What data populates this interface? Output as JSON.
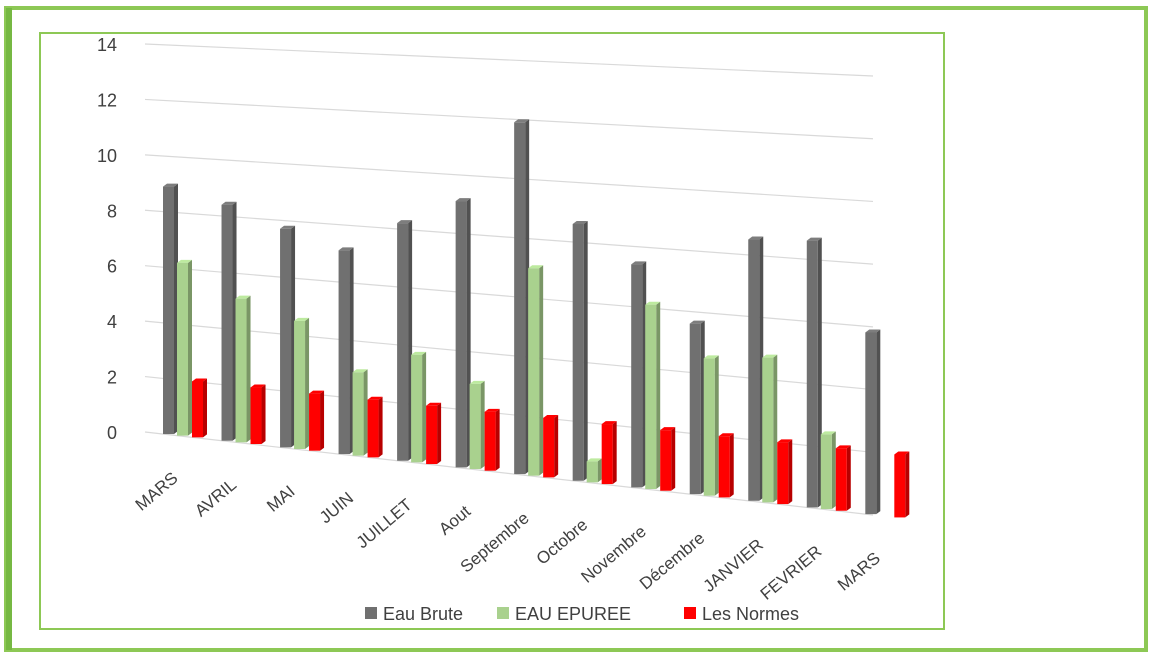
{
  "chart_data": {
    "type": "bar",
    "categories": [
      "MARS",
      "AVRIL",
      "MAI",
      "JUIN",
      "JUILLET",
      "Aout",
      "Septembre",
      "Octobre",
      "Novembre",
      "Décembre",
      "JANVIER",
      "FEVRIER",
      "MARS"
    ],
    "series": [
      {
        "name": "Eau Brute",
        "color": "#707070",
        "values": [
          8.9,
          8.4,
          7.7,
          7.1,
          8.2,
          9.1,
          11.9,
          8.6,
          7.4,
          5.6,
          8.5,
          8.6,
          5.8
        ]
      },
      {
        "name": "EAU EPUREE",
        "color": "#a9d18e",
        "values": [
          6.2,
          5.1,
          4.5,
          2.9,
          3.7,
          2.9,
          7.0,
          0.7,
          6.1,
          4.5,
          4.7,
          2.4,
          null
        ]
      },
      {
        "name": "Les Normes",
        "color": "#ff0000",
        "values": [
          2.0,
          2.0,
          2.0,
          2.0,
          2.0,
          2.0,
          2.0,
          2.0,
          2.0,
          2.0,
          2.0,
          2.0,
          2.0
        ]
      }
    ],
    "yticks": [
      "0",
      "2",
      "4",
      "6",
      "8",
      "10",
      "12",
      "14"
    ],
    "ylim": [
      0,
      14
    ],
    "grid": true,
    "legend_position": "bottom",
    "perspective": "3d"
  }
}
